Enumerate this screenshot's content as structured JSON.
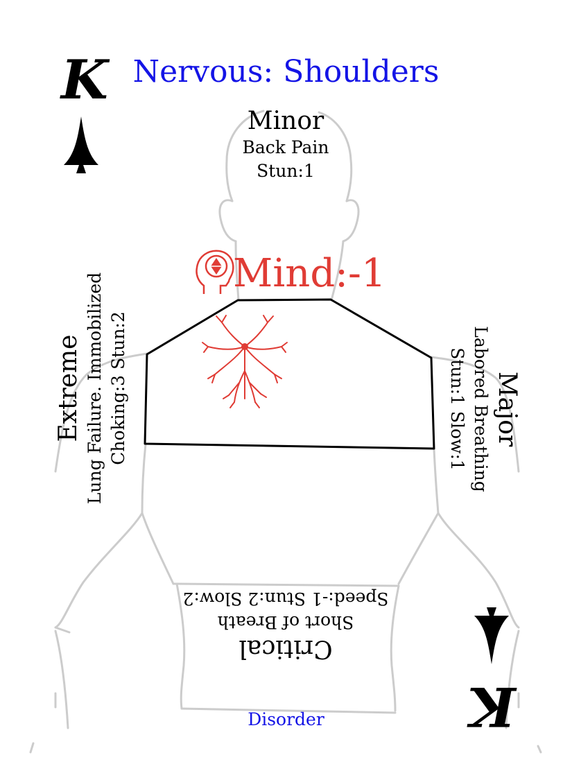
{
  "card": {
    "title": "Nervous: Shoulders",
    "rank": "K",
    "footer": "Disorder",
    "title_color": "#1414e6",
    "accent_color": "#e03c35",
    "outline_color": "#cccccc"
  },
  "effect": {
    "icon": "head-mind-icon",
    "text": "Mind:-1",
    "highlight_icon": "nerve-icon"
  },
  "severities": {
    "minor": {
      "title": "Minor",
      "lines": [
        "Back Pain",
        "Stun:1"
      ]
    },
    "major": {
      "title": "Major",
      "lines": [
        "Labored Breathing",
        "Stun:1 Slow:1"
      ]
    },
    "extreme": {
      "title": "Extreme",
      "lines": [
        "Lung Failure. Immobilized",
        "Choking:3 Stun:2"
      ]
    },
    "critical": {
      "title": "Critical",
      "lines": [
        "Short of Breath",
        "Speed:-1 Stun:2 Slow:2"
      ]
    }
  },
  "suit_icon": "spade-icon"
}
